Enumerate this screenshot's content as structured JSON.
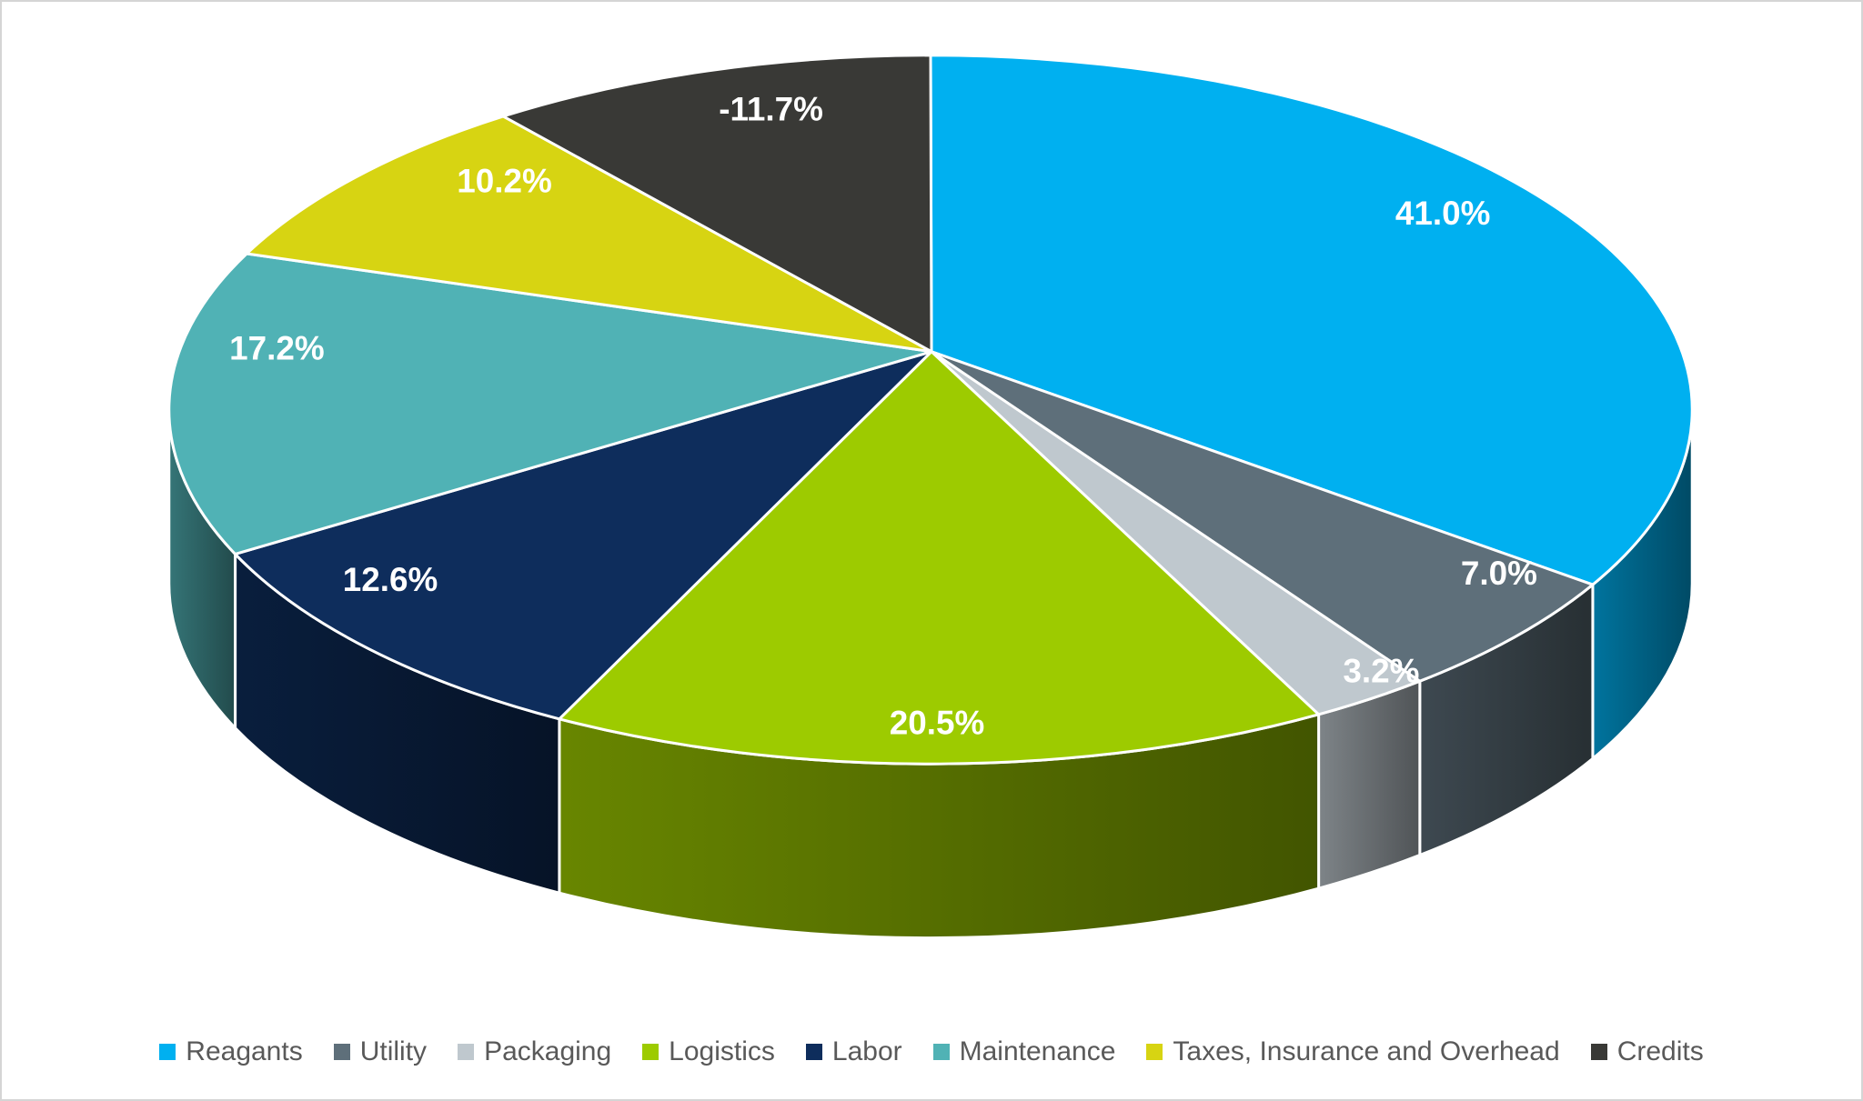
{
  "chart_data": {
    "type": "pie",
    "style": "3d",
    "categories": [
      "Reagants",
      "Utility",
      "Packaging",
      "Logistics",
      "Labor",
      "Maintenance",
      "Taxes, Insurance and Overhead",
      "Credits"
    ],
    "values": [
      41.0,
      7.0,
      3.2,
      20.5,
      12.6,
      17.2,
      10.2,
      -11.7
    ],
    "labels": [
      "41.0%",
      "7.0%",
      "3.2%",
      "20.5%",
      "12.6%",
      "17.2%",
      "10.2%",
      "-11.7%"
    ],
    "colors": [
      "#00B0F0",
      "#5E6F7A",
      "#BFC8CE",
      "#9DCB00",
      "#0E2D5C",
      "#50B2B5",
      "#D7D412",
      "#393936"
    ],
    "label_color": "#FFFFFF",
    "slice_border_color": "#FFFFFF",
    "legend_text_color": "#595959",
    "legend_position": "bottom",
    "start_angle_deg": 0,
    "direction": "clockwise",
    "negative_values_plotted_as_absolute": true,
    "background_color": "#FFFFFF",
    "frame_border_color": "#D5D5D5"
  }
}
